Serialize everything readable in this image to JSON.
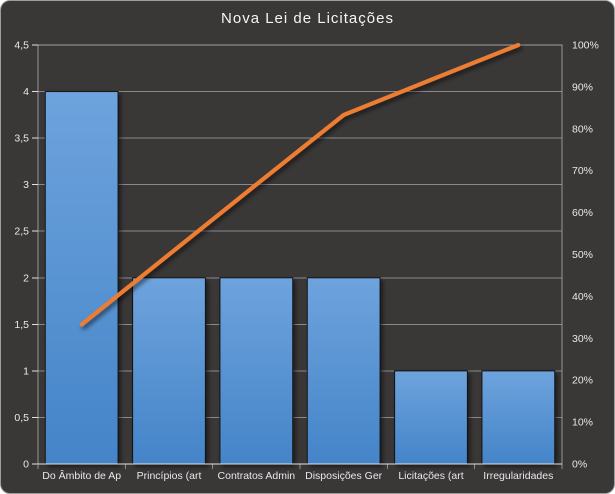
{
  "chart_data": {
    "type": "pareto",
    "title": "Nova Lei de Licitações",
    "legend": "none",
    "grid": true,
    "categories": [
      "Do Âmbito de Ap",
      "Princípios (art",
      "Contratos Admin",
      "Disposições Ger",
      "Licitações (art",
      "Irregularidades"
    ],
    "bars": {
      "values": [
        4,
        2,
        2,
        2,
        1,
        1
      ],
      "axis": "left"
    },
    "cumulative_line": {
      "values_pct": [
        33.3,
        50,
        66.7,
        83.3,
        91.7,
        100
      ],
      "axis": "right"
    },
    "left_axis": {
      "min": 0,
      "max": 4.5,
      "step": 0.5,
      "tick_labels": [
        "0",
        "0,5",
        "1",
        "1,5",
        "2",
        "2,5",
        "3",
        "3,5",
        "4",
        "4,5"
      ]
    },
    "right_axis": {
      "min": 0,
      "max": 100,
      "step": 10,
      "tick_labels": [
        "0%",
        "10%",
        "20%",
        "30%",
        "40%",
        "50%",
        "60%",
        "70%",
        "80%",
        "90%",
        "100%"
      ]
    },
    "colors": {
      "background": "#3a3737",
      "frame_border": "#9e9e9e",
      "bar_gradient_top": "#6ea3dd",
      "bar_gradient_bottom": "#4484c8",
      "bar_outline": "#141414",
      "line": "#ed7d31",
      "gridline": "#a6a6a6",
      "axis_line": "#e2e2e2",
      "text": "#e9e9e9",
      "title_text": "#f5f5f5"
    }
  }
}
